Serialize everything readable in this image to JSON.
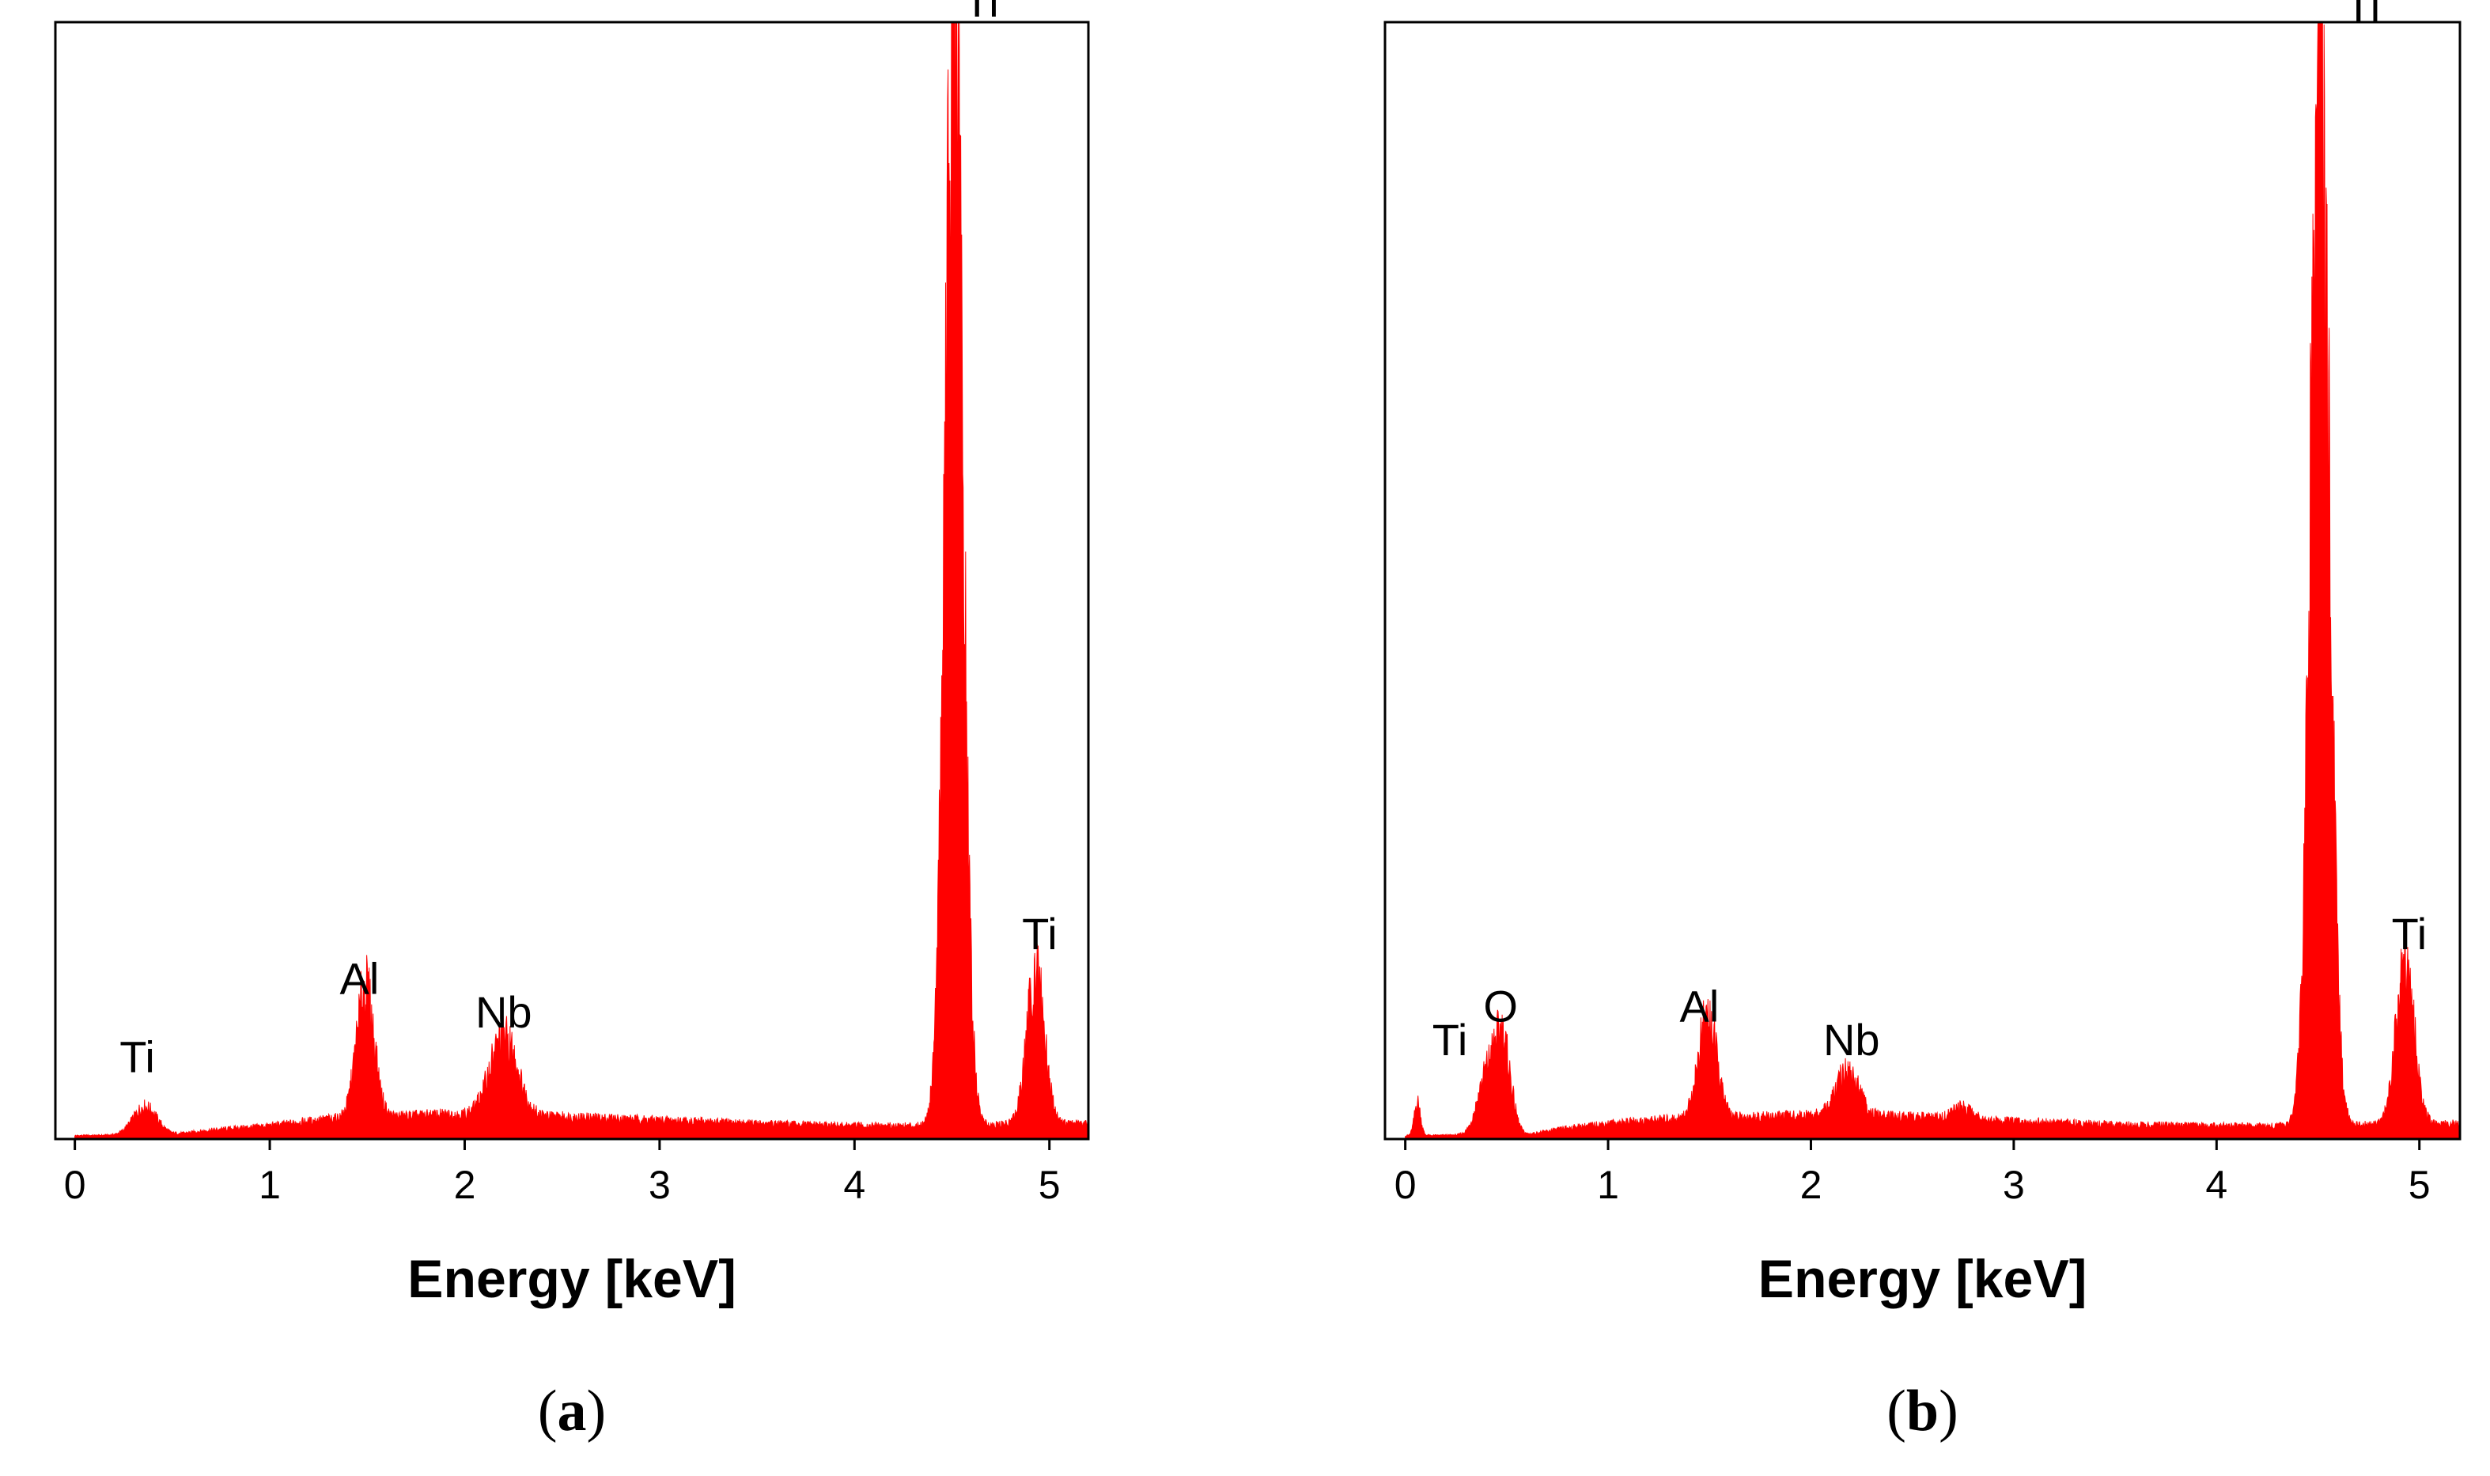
{
  "figure": {
    "colors": {
      "spectrum": "#ff0000",
      "frame": "#000000",
      "background": "#ffffff"
    }
  },
  "chart_data": [
    {
      "type": "area",
      "panel_label": "a",
      "xlabel": "Energy [keV]",
      "ylabel": "",
      "xlim": [
        -0.1,
        5.2
      ],
      "ylim": [
        0,
        1
      ],
      "xticks": [
        0,
        1,
        2,
        3,
        4,
        5
      ],
      "y_axis_ticks_shown": false,
      "background_level": {
        "x": [
          0.0,
          0.5,
          0.7,
          1.0,
          1.3,
          1.9,
          2.5,
          3.0,
          3.5,
          4.0,
          4.3,
          4.7,
          5.2
        ],
        "y": [
          0.003,
          0.004,
          0.008,
          0.012,
          0.018,
          0.022,
          0.02,
          0.017,
          0.014,
          0.012,
          0.012,
          0.013,
          0.014
        ]
      },
      "peaks": [
        {
          "label": "Ti",
          "energy": 0.36,
          "height": 0.025,
          "width": 0.06
        },
        {
          "label": "Al",
          "energy": 1.49,
          "height": 0.115,
          "width": 0.045
        },
        {
          "label": "Nb",
          "energy": 2.2,
          "height": 0.07,
          "width": 0.07
        },
        {
          "label": "Ti",
          "energy": 4.51,
          "height": 0.995,
          "width": 0.045
        },
        {
          "label": "Ti",
          "energy": 4.93,
          "height": 0.135,
          "width": 0.045
        }
      ],
      "annotations": [
        {
          "text": "Ti",
          "x": 0.32,
          "y": 0.06
        },
        {
          "text": "Al",
          "x": 1.46,
          "y": 0.13
        },
        {
          "text": "Nb",
          "x": 2.2,
          "y": 0.1
        },
        {
          "text": "Ti",
          "x": 4.65,
          "y": 1.005
        },
        {
          "text": "Ti",
          "x": 4.95,
          "y": 0.17
        }
      ]
    },
    {
      "type": "area",
      "panel_label": "b",
      "xlabel": "Energy [keV]",
      "ylabel": "",
      "xlim": [
        -0.1,
        5.2
      ],
      "ylim": [
        0,
        1
      ],
      "xticks": [
        0,
        1,
        2,
        3,
        4,
        5
      ],
      "y_axis_ticks_shown": false,
      "background_level": {
        "x": [
          0.0,
          0.6,
          0.8,
          1.0,
          1.3,
          2.0,
          2.5,
          3.0,
          3.5,
          4.0,
          4.3,
          4.7,
          5.2
        ],
        "y": [
          0.003,
          0.004,
          0.01,
          0.014,
          0.018,
          0.021,
          0.02,
          0.016,
          0.013,
          0.012,
          0.012,
          0.013,
          0.014
        ]
      },
      "peaks": [
        {
          "label": "Ti",
          "energy": 0.06,
          "height": 0.03,
          "width": 0.015
        },
        {
          "label": "Ti",
          "energy": 0.4,
          "height": 0.05,
          "width": 0.045
        },
        {
          "label": "O",
          "energy": 0.48,
          "height": 0.08,
          "width": 0.04
        },
        {
          "label": "Al",
          "energy": 1.49,
          "height": 0.09,
          "width": 0.045
        },
        {
          "label": "Nb",
          "energy": 2.18,
          "height": 0.04,
          "width": 0.055
        },
        {
          "label": "Ti",
          "energy": 2.75,
          "height": 0.01,
          "width": 0.05
        },
        {
          "label": "Ti",
          "energy": 4.51,
          "height": 0.995,
          "width": 0.045
        },
        {
          "label": "Ti",
          "energy": 4.93,
          "height": 0.14,
          "width": 0.045
        }
      ],
      "annotations": [
        {
          "text": "Ti",
          "x": 0.22,
          "y": 0.075
        },
        {
          "text": "O",
          "x": 0.47,
          "y": 0.105
        },
        {
          "text": "Al",
          "x": 1.45,
          "y": 0.105
        },
        {
          "text": "Nb",
          "x": 2.2,
          "y": 0.075
        },
        {
          "text": "Ti",
          "x": 4.72,
          "y": 1.0
        },
        {
          "text": "Ti",
          "x": 4.95,
          "y": 0.17
        }
      ]
    }
  ]
}
